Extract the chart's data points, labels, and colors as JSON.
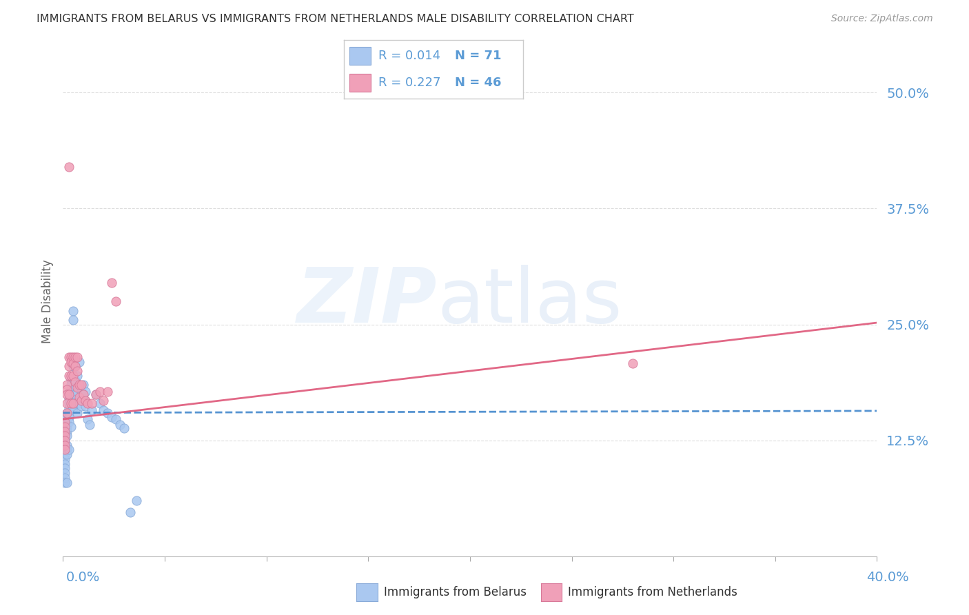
{
  "title": "IMMIGRANTS FROM BELARUS VS IMMIGRANTS FROM NETHERLANDS MALE DISABILITY CORRELATION CHART",
  "source": "Source: ZipAtlas.com",
  "ylabel": "Male Disability",
  "color_belarus": "#aac8f0",
  "color_netherlands": "#f0a0b8",
  "color_belarus_edge": "#88aad8",
  "color_netherlands_edge": "#d87898",
  "color_belarus_line": "#4488cc",
  "color_netherlands_line": "#e06080",
  "color_labels": "#5b9bd5",
  "color_title": "#333333",
  "r_belarus": "0.014",
  "n_belarus": "71",
  "r_netherlands": "0.227",
  "n_netherlands": "46",
  "xmin": 0.0,
  "xmax": 0.4,
  "ymin": 0.0,
  "ymax": 0.55,
  "yticks": [
    0.125,
    0.25,
    0.375,
    0.5
  ],
  "ytick_labels": [
    "12.5%",
    "25.0%",
    "37.5%",
    "50.0%"
  ],
  "belarus_trend_x": [
    0.0,
    0.4
  ],
  "belarus_trend_y": [
    0.155,
    0.157
  ],
  "netherlands_trend_x": [
    0.0,
    0.4
  ],
  "netherlands_trend_y": [
    0.148,
    0.252
  ],
  "belarus_x": [
    0.001,
    0.001,
    0.001,
    0.001,
    0.001,
    0.001,
    0.001,
    0.001,
    0.001,
    0.001,
    0.001,
    0.002,
    0.002,
    0.002,
    0.002,
    0.002,
    0.002,
    0.002,
    0.002,
    0.002,
    0.002,
    0.003,
    0.003,
    0.003,
    0.003,
    0.003,
    0.003,
    0.003,
    0.003,
    0.004,
    0.004,
    0.004,
    0.004,
    0.004,
    0.004,
    0.005,
    0.005,
    0.005,
    0.005,
    0.005,
    0.005,
    0.006,
    0.006,
    0.006,
    0.006,
    0.007,
    0.007,
    0.007,
    0.007,
    0.008,
    0.008,
    0.008,
    0.009,
    0.009,
    0.01,
    0.01,
    0.011,
    0.011,
    0.012,
    0.013,
    0.014,
    0.016,
    0.018,
    0.02,
    0.022,
    0.024,
    0.026,
    0.028,
    0.03,
    0.033,
    0.036
  ],
  "belarus_y": [
    0.13,
    0.125,
    0.12,
    0.115,
    0.11,
    0.105,
    0.1,
    0.095,
    0.09,
    0.085,
    0.08,
    0.155,
    0.15,
    0.145,
    0.14,
    0.135,
    0.13,
    0.12,
    0.115,
    0.11,
    0.08,
    0.175,
    0.17,
    0.165,
    0.16,
    0.155,
    0.15,
    0.145,
    0.115,
    0.19,
    0.185,
    0.18,
    0.175,
    0.17,
    0.14,
    0.265,
    0.255,
    0.205,
    0.18,
    0.175,
    0.16,
    0.205,
    0.19,
    0.175,
    0.165,
    0.195,
    0.178,
    0.165,
    0.155,
    0.21,
    0.185,
    0.165,
    0.178,
    0.162,
    0.185,
    0.17,
    0.178,
    0.162,
    0.148,
    0.142,
    0.158,
    0.175,
    0.165,
    0.158,
    0.155,
    0.15,
    0.148,
    0.142,
    0.138,
    0.048,
    0.06
  ],
  "netherlands_x": [
    0.001,
    0.001,
    0.001,
    0.001,
    0.001,
    0.001,
    0.001,
    0.002,
    0.002,
    0.002,
    0.002,
    0.002,
    0.003,
    0.003,
    0.003,
    0.003,
    0.004,
    0.004,
    0.004,
    0.004,
    0.005,
    0.005,
    0.005,
    0.005,
    0.006,
    0.006,
    0.006,
    0.007,
    0.007,
    0.007,
    0.008,
    0.008,
    0.009,
    0.009,
    0.01,
    0.011,
    0.012,
    0.014,
    0.016,
    0.018,
    0.02,
    0.022,
    0.024,
    0.28,
    0.003,
    0.026
  ],
  "netherlands_y": [
    0.145,
    0.14,
    0.135,
    0.13,
    0.125,
    0.12,
    0.115,
    0.185,
    0.18,
    0.175,
    0.165,
    0.155,
    0.215,
    0.205,
    0.195,
    0.175,
    0.215,
    0.21,
    0.195,
    0.165,
    0.215,
    0.208,
    0.195,
    0.165,
    0.215,
    0.205,
    0.188,
    0.215,
    0.2,
    0.182,
    0.185,
    0.172,
    0.185,
    0.168,
    0.175,
    0.168,
    0.165,
    0.165,
    0.175,
    0.178,
    0.168,
    0.178,
    0.295,
    0.208,
    0.42,
    0.275
  ]
}
